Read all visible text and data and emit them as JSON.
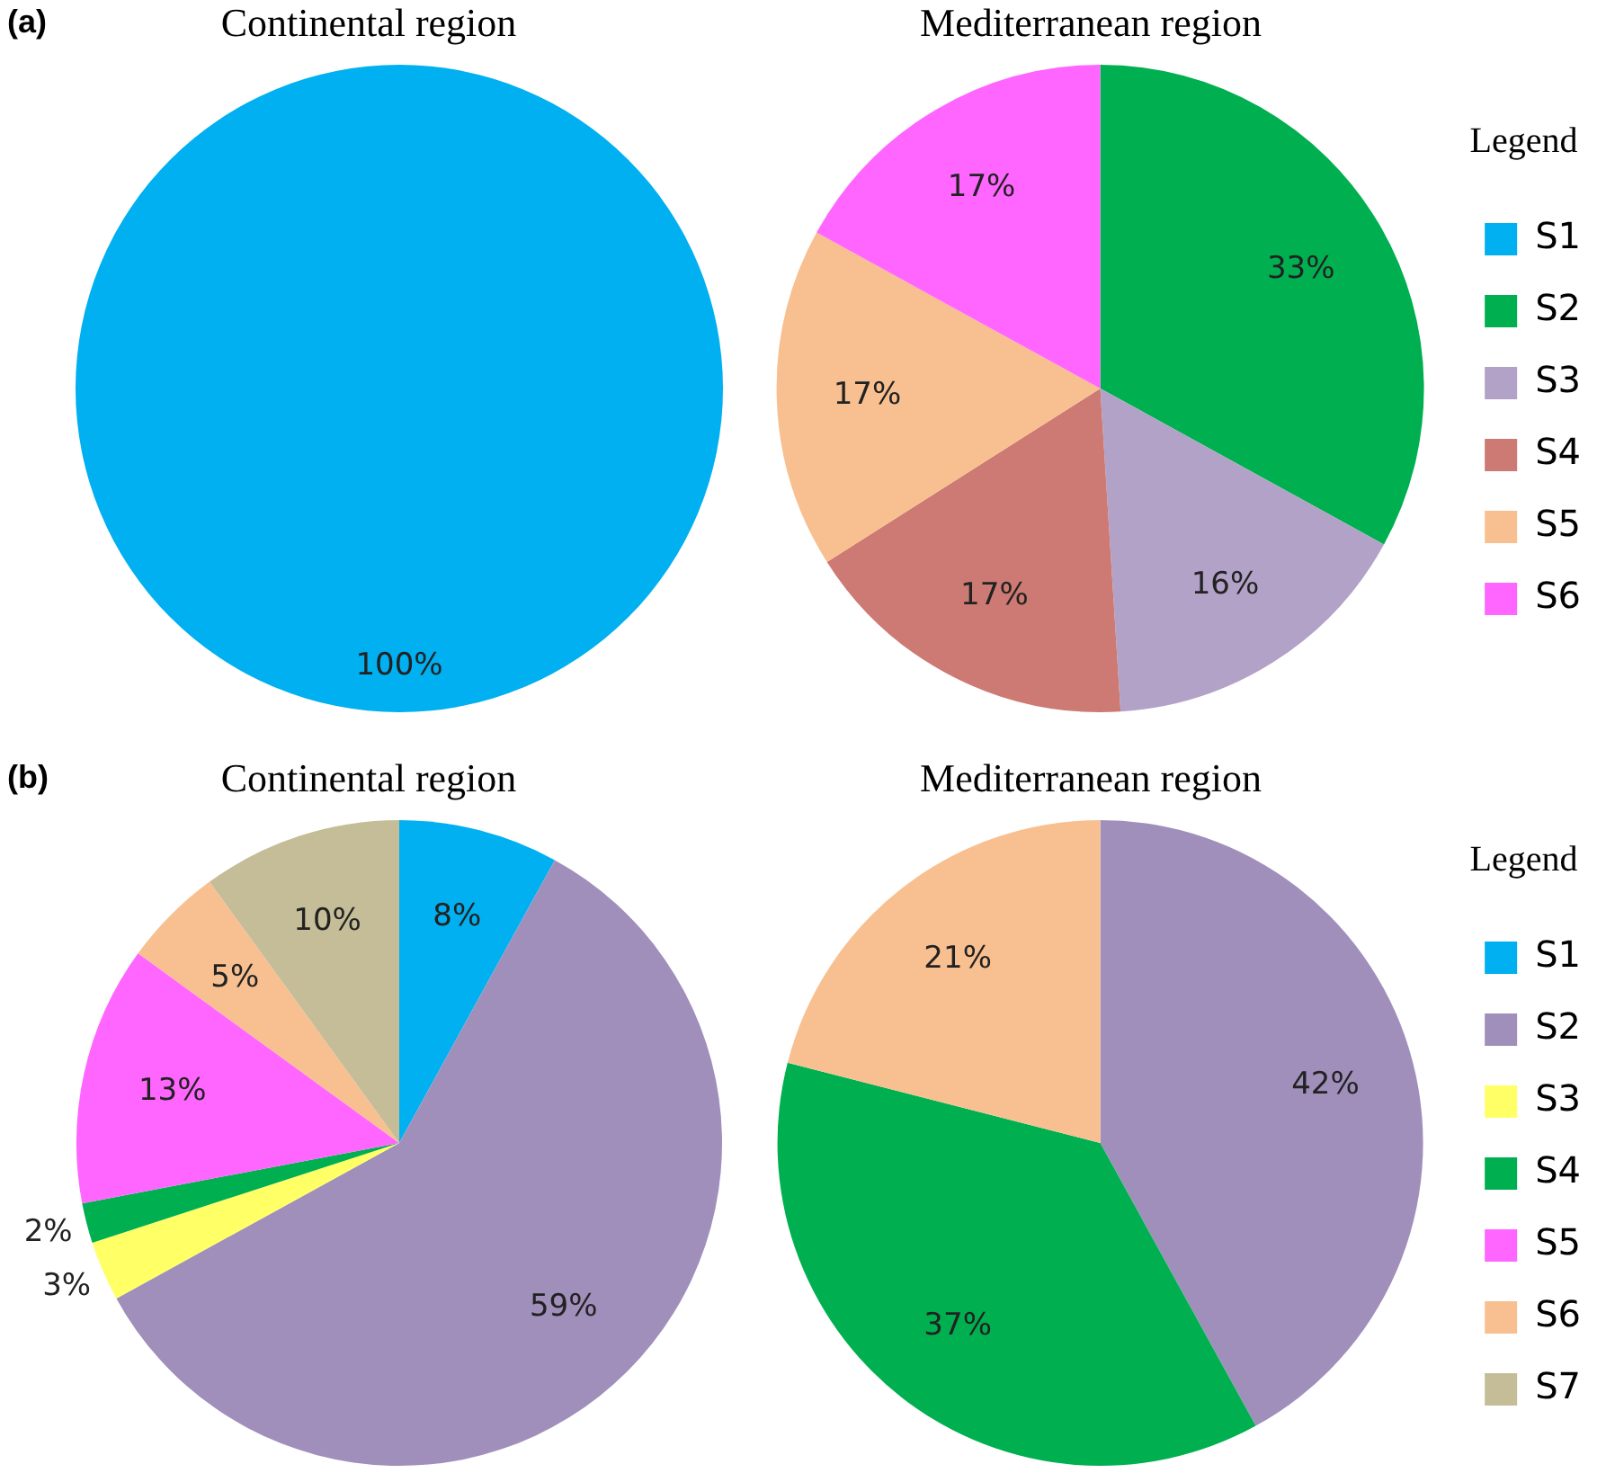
{
  "chart_data": [
    {
      "type": "pie",
      "title": "Continental region",
      "annotations": [
        "(a)"
      ],
      "categories": [
        null,
        null,
        null,
        null,
        null,
        null
      ],
      "values": [
        100,
        0,
        0,
        0,
        0,
        0
      ],
      "colors": [
        "#00b0f0",
        "#00b050",
        "#b3a2c7",
        "#cc7a73",
        "#f8c090",
        "#ff66ff"
      ],
      "value_labels": [
        "100%",
        null,
        null,
        null,
        null,
        null
      ],
      "legend": false
    },
    {
      "type": "pie",
      "title": "Mediterranean region",
      "legend_title": "Legend",
      "categories": [
        "S1",
        "S2",
        "S3",
        "S4",
        "S5",
        "S6"
      ],
      "values": [
        0,
        33,
        16,
        17,
        17,
        17
      ],
      "colors": [
        "#00b0f0",
        "#00b050",
        "#b3a2c7",
        "#cc7a73",
        "#f8c090",
        "#ff66ff"
      ],
      "value_labels": [
        null,
        "33%",
        "16%",
        "17%",
        "17%",
        "17%"
      ],
      "legend": "right"
    },
    {
      "type": "pie",
      "title": "Continental region",
      "annotations": [
        "(b)"
      ],
      "categories": [
        null,
        null,
        null,
        null,
        null,
        null,
        null
      ],
      "values": [
        8,
        59,
        3,
        2,
        13,
        5,
        10
      ],
      "colors": [
        "#00b0f0",
        "#a08fbb",
        "#ffff66",
        "#00b050",
        "#ff66ff",
        "#f8c090",
        "#c4bd97"
      ],
      "value_labels": [
        "8%",
        "59%",
        "3%",
        "2%",
        "13%",
        "5%",
        "10%"
      ],
      "legend": false
    },
    {
      "type": "pie",
      "title": "Mediterranean region",
      "legend_title": "Legend",
      "categories": [
        "S1",
        "S2",
        "S3",
        "S4",
        "S5",
        "S6",
        "S7"
      ],
      "values": [
        0,
        42,
        0,
        37,
        0,
        21,
        0
      ],
      "colors": [
        "#00b0f0",
        "#a08fbb",
        "#ffff66",
        "#00b050",
        "#ff66ff",
        "#f8c090",
        "#c4bd97"
      ],
      "value_labels": [
        null,
        "42%",
        null,
        "37%",
        null,
        "21%",
        null
      ],
      "legend": "right"
    }
  ]
}
